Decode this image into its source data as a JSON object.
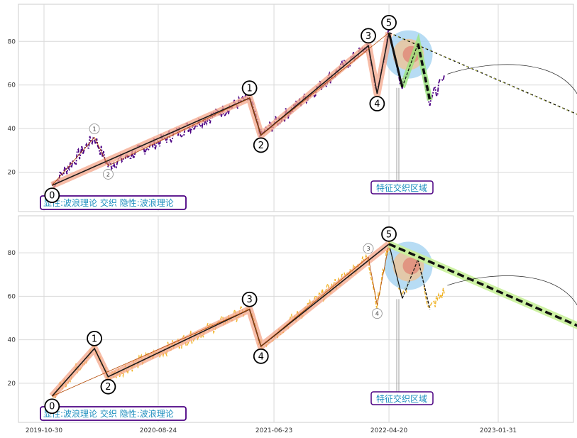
{
  "chart_data": [
    {
      "type": "line",
      "panel": "top",
      "ylim": [
        2,
        97
      ],
      "yticks": [
        20,
        40,
        60,
        80
      ],
      "xticks_labels": [],
      "series_color": "#4b0082",
      "grid": true,
      "caption": "显性:波浪理论 交织 隐性:波浪理论",
      "annotation": "特征交织区域",
      "explicit_wave_labels": [
        "0",
        "1",
        "2",
        "3",
        "4",
        "5"
      ],
      "implicit_wave_labels": [
        "0",
        "1",
        "2",
        "3",
        "4",
        "5"
      ],
      "explicit_wave": [
        {
          "label": "0",
          "date": "2019-11-20",
          "value": 14
        },
        {
          "label": "1",
          "date": "2020-03-10",
          "value": 36
        },
        {
          "label": "2",
          "date": "2020-04-15",
          "value": 23
        },
        {
          "label": "3",
          "date": "2021-04-20",
          "value": 54
        },
        {
          "label": "4",
          "date": "2021-05-20",
          "value": 37
        },
        {
          "label": "5",
          "date": "2022-04-20",
          "value": 84
        }
      ],
      "implicit_wave": [
        {
          "label": "0",
          "date": "2019-11-20",
          "value": 14
        },
        {
          "label": "1",
          "date": "2021-04-20",
          "value": 54
        },
        {
          "label": "2",
          "date": "2021-05-20",
          "value": 37
        },
        {
          "label": "3",
          "date": "2022-02-25",
          "value": 78
        },
        {
          "label": "4",
          "date": "2022-03-20",
          "value": 56
        },
        {
          "label": "5",
          "date": "2022-04-20",
          "value": 84
        }
      ],
      "correction": [
        {
          "date": "2022-04-20",
          "value": 84
        },
        {
          "date": "2022-05-25",
          "value": 59
        },
        {
          "date": "2022-07-05",
          "value": 79
        },
        {
          "date": "2022-08-05",
          "value": 53
        }
      ],
      "projection": [
        {
          "date": "2022-04-20",
          "value": 84
        },
        {
          "date": "2023-09-15",
          "value": 45
        }
      ]
    },
    {
      "type": "line",
      "panel": "bottom",
      "ylim": [
        2,
        97
      ],
      "yticks": [
        20,
        40,
        60,
        80
      ],
      "xticks_labels": [
        "2019-10-30",
        "2020-08-24",
        "2021-06-23",
        "2022-04-20",
        "2023-01-31"
      ],
      "series_color": "#f0b429",
      "grid": true,
      "caption": "显性:波浪理论 交织 隐性:波浪理论",
      "annotation": "特征交织区域",
      "explicit_wave_labels": [
        "0",
        "1",
        "2",
        "3",
        "4",
        "5"
      ],
      "implicit_wave_labels": [
        "0",
        "1",
        "2",
        "3",
        "4",
        "5"
      ],
      "explicit_wave": [
        {
          "label": "0",
          "date": "2019-11-20",
          "value": 14
        },
        {
          "label": "1",
          "date": "2020-03-10",
          "value": 36
        },
        {
          "label": "2",
          "date": "2020-04-15",
          "value": 23
        },
        {
          "label": "3",
          "date": "2021-04-20",
          "value": 54
        },
        {
          "label": "4",
          "date": "2021-05-20",
          "value": 37
        },
        {
          "label": "5",
          "date": "2022-04-20",
          "value": 84
        }
      ],
      "implicit_wave": [
        {
          "label": "0",
          "date": "2019-11-20",
          "value": 14
        },
        {
          "label": "1",
          "date": "2021-04-20",
          "value": 54
        },
        {
          "label": "2",
          "date": "2021-05-20",
          "value": 37
        },
        {
          "label": "3",
          "date": "2022-02-25",
          "value": 78
        },
        {
          "label": "4",
          "date": "2022-03-20",
          "value": 56
        },
        {
          "label": "5",
          "date": "2022-04-20",
          "value": 84
        }
      ],
      "correction": [
        {
          "date": "2022-04-20",
          "value": 84
        },
        {
          "date": "2022-05-25",
          "value": 59
        },
        {
          "date": "2022-07-05",
          "value": 77
        },
        {
          "date": "2022-08-05",
          "value": 54
        }
      ],
      "projection": [
        {
          "date": "2022-04-20",
          "value": 84
        },
        {
          "date": "2023-09-15",
          "value": 45
        }
      ]
    }
  ]
}
